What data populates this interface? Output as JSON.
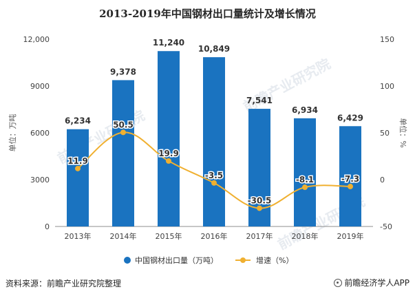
{
  "page": {
    "source": "资料来源：前瞻产业研究院整理",
    "brand": "前瞻经济学人APP",
    "watermark": "前瞻产业研究院"
  },
  "chart_data": {
    "type": "bar",
    "title": "2013-2019年中国钢材出口量统计及增长情况",
    "categories": [
      "2013年",
      "2014年",
      "2015年",
      "2016年",
      "2017年",
      "2018年",
      "2019年"
    ],
    "series": [
      {
        "name": "中国钢材出口量（万吨）",
        "type": "bar",
        "axis": "left",
        "color": "#1a73c0",
        "values": [
          6234,
          9378,
          11240,
          10849,
          7541,
          6934,
          6429
        ],
        "labels": [
          "6,234",
          "9,378",
          "11,240",
          "10,849",
          "7,541",
          "6,934",
          "6,429"
        ]
      },
      {
        "name": "增速（%）",
        "type": "line",
        "smooth": true,
        "axis": "right",
        "color": "#f0b030",
        "values": [
          11.9,
          50.5,
          19.9,
          -3.5,
          -30.5,
          -8.1,
          -7.3
        ],
        "labels": [
          "11.9",
          "50.5",
          "19.9",
          "-3.5",
          "-30.5",
          "-8.1",
          "-7.3"
        ]
      }
    ],
    "y_left": {
      "label": "单位：万吨",
      "ylim": [
        0,
        12000
      ],
      "ticks": [
        0,
        3000,
        6000,
        9000,
        12000
      ],
      "tick_labels": [
        "0",
        "3000",
        "6000",
        "9000",
        "12,000"
      ]
    },
    "y_right": {
      "label": "单位：%",
      "ylim": [
        -50,
        150
      ],
      "ticks": [
        -50,
        0,
        50,
        100,
        150
      ],
      "tick_labels": [
        "-50",
        "0",
        "50",
        "100",
        "150"
      ]
    },
    "grid": false,
    "legend": "bottom"
  }
}
